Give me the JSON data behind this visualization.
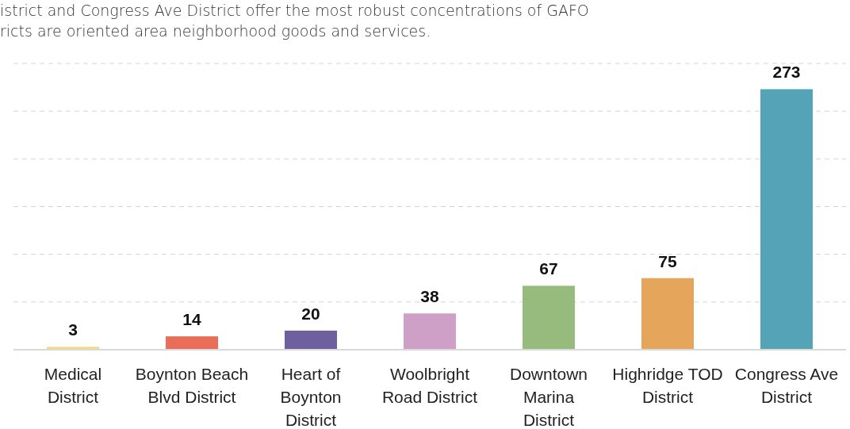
{
  "chart_data": {
    "type": "bar",
    "annotations": [
      "istrict and Congress Ave District offer the most robust concentrations of GAFO",
      "ricts are oriented area neighborhood goods and services."
    ],
    "categories": [
      "Medical District",
      "Boynton Beach Blvd District",
      "Heart of Boynton District",
      "Woolbright Road District",
      "Downtown Marina District",
      "Highridge TOD District",
      "Congress Ave District"
    ],
    "values": [
      3,
      14,
      20,
      38,
      67,
      75,
      273
    ],
    "colors": [
      "#f7d67e",
      "#e96d57",
      "#6e5f9e",
      "#cfa0c7",
      "#97bb7c",
      "#e5a55b",
      "#55a3b6"
    ],
    "ylim": [
      0,
      300
    ],
    "yticks": [
      {
        "value": 0,
        "label": null
      },
      {
        "value": 50,
        "label": null
      },
      {
        "value": 100,
        "label": null
      },
      {
        "value": 150,
        "label": null
      },
      {
        "value": 200,
        "label": null
      },
      {
        "value": 250,
        "label": null
      },
      {
        "value": 300,
        "label": null
      }
    ],
    "grid": "y",
    "data_labels": true
  }
}
